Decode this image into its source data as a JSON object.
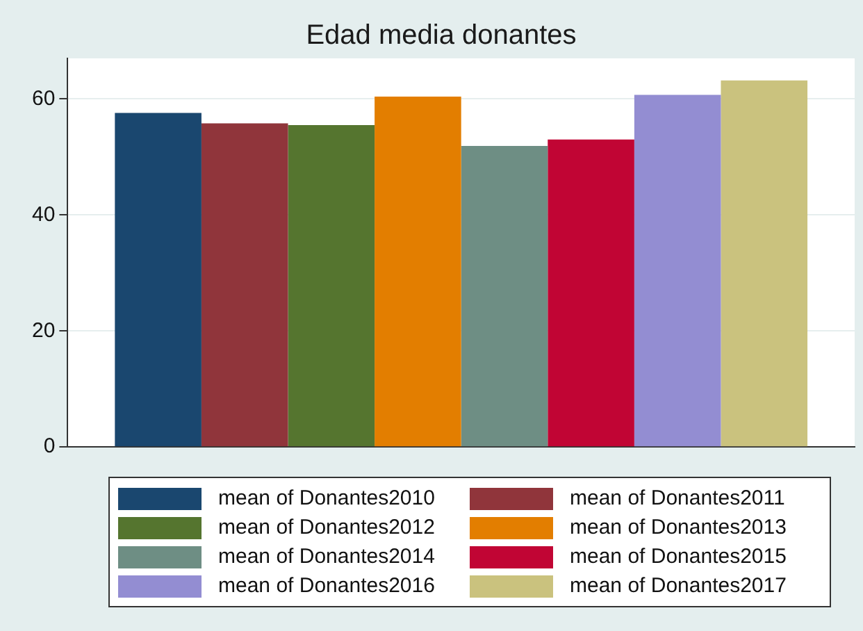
{
  "chart_data": {
    "type": "bar",
    "title": "Edad media donantes",
    "categories": [
      null
    ],
    "series": [
      {
        "name": "mean of Donantes2010",
        "color": "#1a476f",
        "values": [
          57.6
        ]
      },
      {
        "name": "mean of Donantes2011",
        "color": "#90353b",
        "values": [
          55.8
        ]
      },
      {
        "name": "mean of Donantes2012",
        "color": "#55752f",
        "values": [
          55.5
        ]
      },
      {
        "name": "mean of Donantes2013",
        "color": "#e37e00",
        "values": [
          60.4
        ]
      },
      {
        "name": "mean of Donantes2014",
        "color": "#6e8e84",
        "values": [
          51.9
        ]
      },
      {
        "name": "mean of Donantes2015",
        "color": "#c10534",
        "values": [
          53.0
        ]
      },
      {
        "name": "mean of Donantes2016",
        "color": "#938dd2",
        "values": [
          60.7
        ]
      },
      {
        "name": "mean of Donantes2017",
        "color": "#cac27e",
        "values": [
          63.2
        ]
      }
    ],
    "ylim": [
      0,
      67
    ],
    "yticks": [
      0,
      20,
      40,
      60
    ],
    "grid": "y",
    "legend": "bottom"
  }
}
